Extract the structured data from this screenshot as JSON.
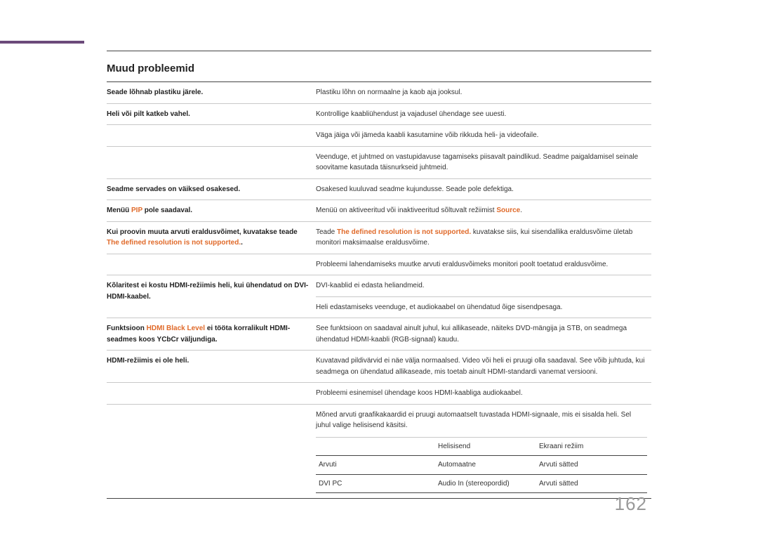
{
  "title": "Muud probleemid",
  "rows": {
    "r1": {
      "label": "Seade lõhnab plastiku järele.",
      "desc": "Plastiku lõhn on normaalne ja kaob aja jooksul."
    },
    "r2": {
      "label": "Heli või pilt katkeb vahel.",
      "p1": "Kontrollige kaabliühendust ja vajadusel ühendage see uuesti.",
      "p2": "Väga jäiga või jämeda kaabli kasutamine võib rikkuda heli- ja videofaile.",
      "p3": "Veenduge, et juhtmed on vastupidavuse tagamiseks piisavalt paindlikud. Seadme paigaldamisel seinale soovitame kasutada täisnurkseid juhtmeid."
    },
    "r3": {
      "label": "Seadme servades on väiksed osakesed.",
      "desc": "Osakesed kuuluvad seadme kujundusse. Seade pole defektiga."
    },
    "r4": {
      "label_pre": "Menüü ",
      "label_orange": "PIP",
      "label_post": " pole saadaval.",
      "desc_pre": "Menüü on aktiveeritud või inaktiveeritud sõltuvalt režiimist ",
      "desc_orange": "Source",
      "desc_post": "."
    },
    "r5": {
      "label_pre": "Kui proovin muuta arvuti eraldusvõimet, kuvatakse teade ",
      "label_orange": "The defined resolution is not supported.",
      "label_post": ".",
      "desc_pre": "Teade ",
      "desc_orange": "The defined resolution is not supported.",
      "desc_post": " kuvatakse siis, kui sisendallika eraldusvõime ületab monitori maksimaalse eraldusvõime.",
      "p2": "Probleemi lahendamiseks muutke arvuti eraldusvõimeks monitori poolt toetatud eraldusvõime."
    },
    "r6": {
      "label": "Kõlaritest ei kostu HDMI-režiimis heli, kui ühendatud on DVI-HDMI-kaabel.",
      "p1": "DVI-kaablid ei edasta heliandmeid.",
      "p2": "Heli edastamiseks veenduge, et audiokaabel on ühendatud õige sisendpesaga."
    },
    "r7": {
      "label_pre": "Funktsioon ",
      "label_orange": "HDMI Black Level",
      "label_post": " ei tööta korralikult HDMI-seadmes koos YCbCr väljundiga.",
      "desc": "See funktsioon on saadaval ainult juhul, kui allikaseade, näiteks DVD-mängija ja STB, on seadmega ühendatud HDMI-kaabli (RGB-signaal) kaudu."
    },
    "r8": {
      "label": "HDMI-režiimis ei ole heli.",
      "p1": "Kuvatavad pildivärvid ei näe välja normaalsed. Video või heli ei pruugi olla saadaval. See võib juhtuda, kui seadmega on ühendatud allikaseade, mis toetab ainult HDMI-standardi vanemat versiooni.",
      "p2": "Probleemi esinemisel ühendage koos HDMI-kaabliga audiokaabel.",
      "p3": "Mõned arvuti graafikakaardid ei pruugi automaatselt tuvastada HDMI-signaale, mis ei sisalda heli. Sel juhul valige helisisend käsitsi."
    }
  },
  "inner": {
    "h1": "",
    "h2": "Helisisend",
    "h3": "Ekraani režiim",
    "row1": {
      "c1": "Arvuti",
      "c2": "Automaatne",
      "c3": "Arvuti sätted"
    },
    "row2": {
      "c1": "DVI PC",
      "c2": "Audio In (stereopordid)",
      "c3": "Arvuti sätted"
    }
  },
  "pageNumber": "162"
}
